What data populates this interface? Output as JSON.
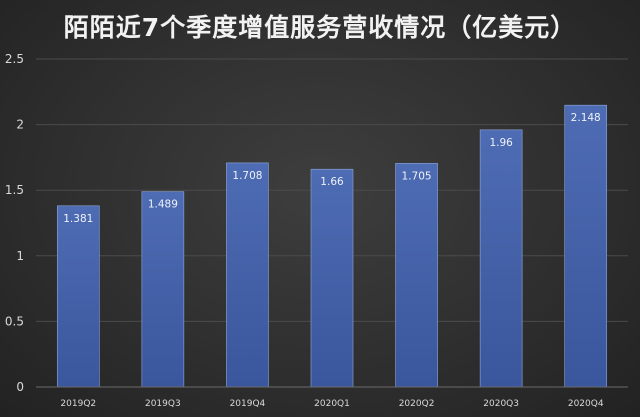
{
  "chart_data": {
    "type": "bar",
    "title": "陌陌近7个季度增值服务营收情况（亿美元）",
    "categories": [
      "2019Q2",
      "2019Q3",
      "2019Q4",
      "2020Q1",
      "2020Q2",
      "2020Q3",
      "2020Q4"
    ],
    "values": [
      1.381,
      1.489,
      1.708,
      1.66,
      1.705,
      1.96,
      2.148
    ],
    "data_labels": [
      "1.381",
      "1.489",
      "1.708",
      "1.66",
      "1.705",
      "1.96",
      "2.148"
    ],
    "yticks": [
      "0",
      "0.5",
      "1",
      "1.5",
      "2",
      "2.5"
    ],
    "ylim": [
      0,
      2.5
    ],
    "xlabel": "",
    "ylabel": "",
    "grid": true,
    "legend": "none",
    "bar_color_top": "#4e6cb4",
    "bar_color_bottom": "#3a569c",
    "background_color": "#333333"
  }
}
